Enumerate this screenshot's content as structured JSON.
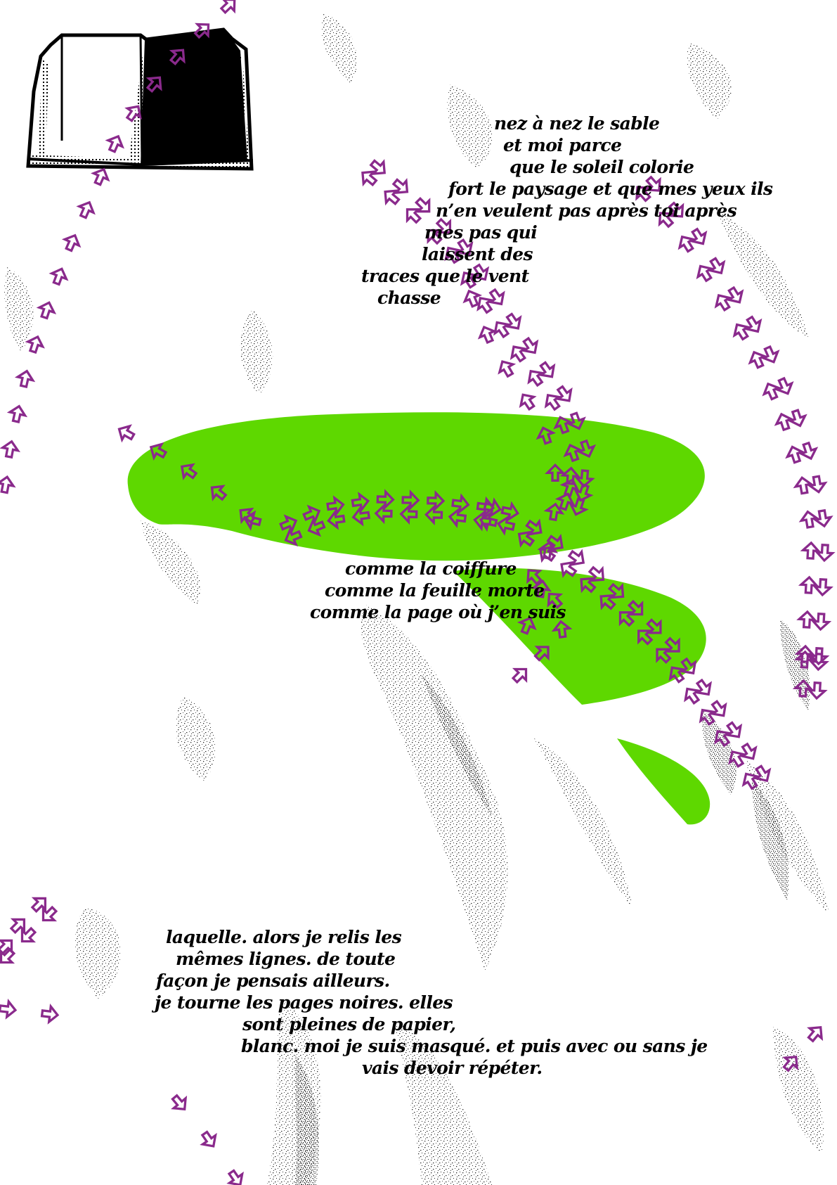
{
  "colors": {
    "background": "#ffffff",
    "accent_green": "#5ed800",
    "arrow_purple": "#8a2a8c",
    "ink": "#000000"
  },
  "decorations": {
    "book_icon": "open-book-icon",
    "arrow_icon": "outline-arrow-icon",
    "texture": "black-speckle-texture"
  },
  "poem": {
    "stanza1": [
      "nez à nez le sable",
      "et moi parce",
      "que le soleil colorie",
      "fort le paysage et que mes yeux ils",
      "n’en veulent pas après toi après",
      "mes pas qui",
      "laissent des",
      "traces que le vent",
      "chasse"
    ],
    "stanza2": [
      "comme la coiffure",
      "comme la feuille morte",
      "comme la page où j’en suis"
    ],
    "stanza3": [
      "laquelle. alors je relis les",
      "mêmes lignes. de toute",
      "façon je pensais ailleurs.",
      "je tourne les pages noires. elles",
      "sont pleines de papier,",
      "blanc. moi je suis masqué. et puis avec ou sans je",
      "vais devoir répéter."
    ]
  }
}
